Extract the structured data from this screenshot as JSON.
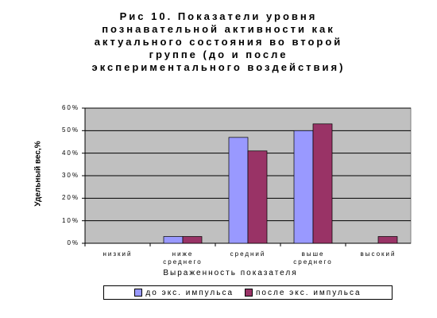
{
  "chart_data": {
    "type": "bar",
    "title": [
      "Рис 10. Показатели уровня",
      "познавательной активности как",
      "актуального состояния во второй",
      "группе (до и после",
      "экспериментального воздействия)"
    ],
    "categories": [
      "низкий",
      "ниже среднего",
      "средний",
      "выше среднего",
      "высокий"
    ],
    "series": [
      {
        "name": "до экс. импульса",
        "color": "#9999ff",
        "values": [
          0,
          3,
          47,
          50,
          0
        ]
      },
      {
        "name": "после экс. импульса",
        "color": "#993366",
        "values": [
          0,
          3,
          41,
          53,
          3
        ]
      }
    ],
    "ylim": [
      0,
      60
    ],
    "yticks": [
      {
        "value": 0,
        "label": "0%"
      },
      {
        "value": 10,
        "label": "10%"
      },
      {
        "value": 20,
        "label": "20%"
      },
      {
        "value": 30,
        "label": "30%"
      },
      {
        "value": 40,
        "label": "40%"
      },
      {
        "value": 50,
        "label": "50%"
      },
      {
        "value": 60,
        "label": "60%"
      }
    ],
    "grid": true,
    "x_label": "Выраженность показателя",
    "y_label": "Удельный вес,%",
    "legend": "bottom"
  }
}
